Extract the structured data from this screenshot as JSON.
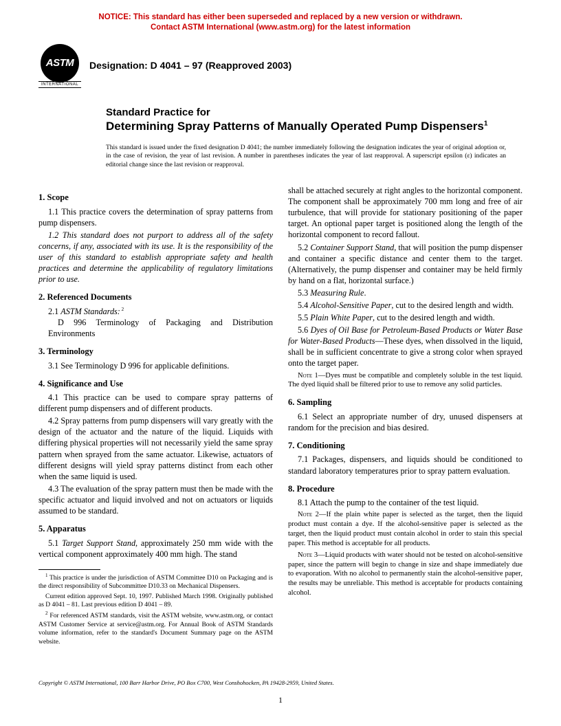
{
  "notice": {
    "line1": "NOTICE: This standard has either been superseded and replaced by a new version or withdrawn.",
    "line2": "Contact ASTM International (www.astm.org) for the latest information"
  },
  "logo": {
    "initials": "ASTM",
    "subtext": "INTERNATIONAL"
  },
  "designation": "Designation: D 4041 – 97 (Reapproved 2003)",
  "title": {
    "pre": "Standard Practice for",
    "main": "Determining Spray Patterns of Manually Operated Pump Dispensers",
    "sup": "1"
  },
  "issuance": "This standard is issued under the fixed designation D 4041; the number immediately following the designation indicates the year of original adoption or, in the case of revision, the year of last revision. A number in parentheses indicates the year of last reapproval. A superscript epsilon (ε) indicates an editorial change since the last revision or reapproval.",
  "sections": {
    "s1": {
      "head": "1. Scope",
      "p1": "1.1 This practice covers the determination of spray patterns from pump dispensers.",
      "p2": "1.2 This standard does not purport to address all of the safety concerns, if any, associated with its use. It is the responsibility of the user of this standard to establish appropriate safety and health practices and determine the applicability of regulatory limitations prior to use."
    },
    "s2": {
      "head": "2. Referenced Documents",
      "p1a": "2.1 ",
      "p1b": "ASTM Standards:",
      "p1sup": " 2",
      "p2": "D 996 Terminology of Packaging and Distribution Environments"
    },
    "s3": {
      "head": "3. Terminology",
      "p1": "3.1 See Terminology D 996 for applicable definitions."
    },
    "s4": {
      "head": "4. Significance and Use",
      "p1": "4.1 This practice can be used to compare spray patterns of different pump dispensers and of different products.",
      "p2": "4.2 Spray patterns from pump dispensers will vary greatly with the design of the actuator and the nature of the liquid. Liquids with differing physical properties will not necessarily yield the same spray pattern when sprayed from the same actuator. Likewise, actuators of different designs will yield spray patterns distinct from each other when the same liquid is used.",
      "p3": "4.3 The evaluation of the spray pattern must then be made with the specific actuator and liquid involved and not on actuators or liquids assumed to be standard."
    },
    "s5": {
      "head": "5. Apparatus",
      "p1a": "5.1 ",
      "p1b": "Target Support Stand",
      "p1c": ", approximately 250 mm wide with the vertical component approximately 400 mm high. The stand",
      "p1cont": "shall be attached securely at right angles to the horizontal component. The component shall be approximately 700 mm long and free of air turbulence, that will provide for stationary positioning of the paper target. An optional paper target is positioned along the length of the horizontal component to record fallout.",
      "p2a": "5.2 ",
      "p2b": "Container Support Stand",
      "p2c": ", that will position the pump dispenser and container a specific distance and center them to the target. (Alternatively, the pump dispenser and container may be held firmly by hand on a flat, horizontal surface.)",
      "p3a": "5.3 ",
      "p3b": "Measuring Rule",
      "p3c": ".",
      "p4a": "5.4 ",
      "p4b": "Alcohol-Sensitive Paper",
      "p4c": ", cut to the desired length and width.",
      "p5a": "5.5 ",
      "p5b": "Plain White Paper",
      "p5c": ", cut to the desired length and width.",
      "p6a": "5.6 ",
      "p6b": "Dyes of Oil Base for Petroleum-Based Products or Water Base for Water-Based Products",
      "p6c": "—These dyes, when dissolved in the liquid, shall be in sufficient concentrate to give a strong color when sprayed onto the target paper.",
      "n1label": "Note 1—",
      "n1": "Dyes must be compatible and completely soluble in the test liquid. The dyed liquid shall be filtered prior to use to remove any solid particles."
    },
    "s6": {
      "head": "6. Sampling",
      "p1": "6.1 Select an appropriate number of dry, unused dispensers at random for the precision and bias desired."
    },
    "s7": {
      "head": "7. Conditioning",
      "p1": "7.1 Packages, dispensers, and liquids should be conditioned to standard laboratory temperatures prior to spray pattern evaluation."
    },
    "s8": {
      "head": "8. Procedure",
      "p1": "8.1 Attach the pump to the container of the test liquid.",
      "n2label": "Note 2—",
      "n2": "If the plain white paper is selected as the target, then the liquid product must contain a dye. If the alcohol-sensitive paper is selected as the target, then the liquid product must contain alcohol in order to stain this special paper. This method is acceptable for all products.",
      "n3label": "Note 3—",
      "n3": "Liquid products with water should not be tested on alcohol-sensitive paper, since the pattern will begin to change in size and shape immediately due to evaporation. With no alcohol to permanently stain the alcohol-sensitive paper, the results may be unreliable. This method is acceptable for products containing alcohol."
    }
  },
  "footnotes": {
    "f1": "This practice is under the jurisdiction of ASTM Committee D10 on Packaging and is the direct responsibility of Subcommittee D10.33 on Mechanical Dispensers.",
    "f1b": "Current edition approved Sept. 10, 1997. Published March 1998. Originally published as D 4041 – 81. Last previous edition D 4041 – 89.",
    "f2": "For referenced ASTM standards, visit the ASTM website, www.astm.org, or contact ASTM Customer Service at service@astm.org. For Annual Book of ASTM Standards volume information, refer to the standard's Document Summary page on the ASTM website."
  },
  "copyright": "Copyright © ASTM International, 100 Barr Harbor Drive, PO Box C700, West Conshohocken, PA 19428-2959, United States.",
  "pagenum": "1",
  "colors": {
    "notice": "#cc0000",
    "text": "#000000",
    "bg": "#ffffff"
  }
}
